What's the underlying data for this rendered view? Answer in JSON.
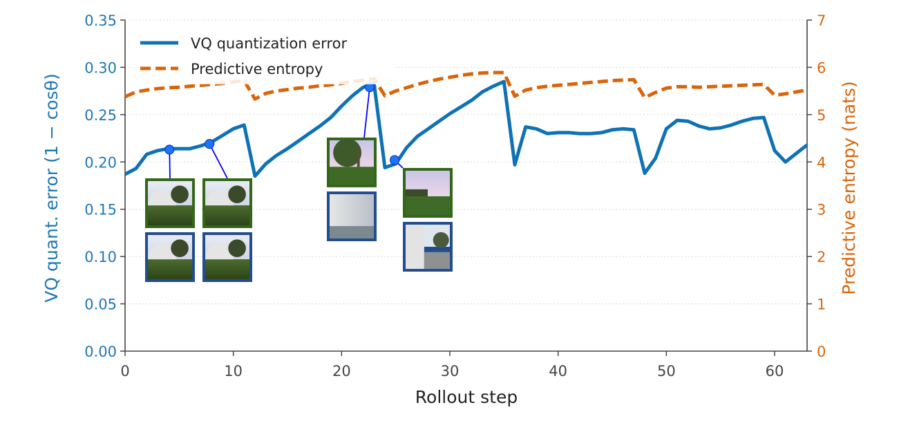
{
  "chart_data": {
    "type": "line",
    "xlabel": "Rollout step",
    "ylabel_left": "VQ quant. error  (1 − cosθ)",
    "ylabel_right": "Predictive entropy (nats)",
    "xlim": [
      0,
      63
    ],
    "ylim_left": [
      0,
      0.35
    ],
    "ylim_right": [
      0,
      7
    ],
    "xticks": [
      0,
      10,
      20,
      30,
      40,
      50,
      60
    ],
    "yticks_left": [
      "0.00",
      "0.05",
      "0.10",
      "0.15",
      "0.20",
      "0.25",
      "0.30",
      "0.35"
    ],
    "yticks_right": [
      "0",
      "1",
      "2",
      "3",
      "4",
      "5",
      "6",
      "7"
    ],
    "grid": "horizontal dotted",
    "legend_position": "top-left",
    "colors": {
      "vq": "#0f72b4",
      "entropy": "#d9650b",
      "axis_left": "#1f77b4",
      "axis_right": "#d9650b",
      "marker": "#1e74ff",
      "connector": "#0000ff",
      "frame_green": "#33661a",
      "frame_blue": "#234d8f"
    },
    "series": [
      {
        "name": "VQ quantization error",
        "axis": "left",
        "style": "solid",
        "x": [
          0,
          1,
          2,
          3,
          4,
          5,
          6,
          7,
          8,
          9,
          10,
          11,
          12,
          13,
          14,
          15,
          16,
          17,
          18,
          19,
          20,
          21,
          22,
          23,
          24,
          25,
          26,
          27,
          28,
          29,
          30,
          31,
          32,
          33,
          34,
          35,
          36,
          37,
          38,
          39,
          40,
          41,
          42,
          43,
          44,
          45,
          46,
          47,
          48,
          49,
          50,
          51,
          52,
          53,
          54,
          55,
          56,
          57,
          58,
          59,
          60,
          61,
          62,
          63
        ],
        "y": [
          0.187,
          0.193,
          0.208,
          0.212,
          0.214,
          0.214,
          0.214,
          0.217,
          0.221,
          0.228,
          0.235,
          0.239,
          0.185,
          0.198,
          0.207,
          0.214,
          0.222,
          0.23,
          0.238,
          0.247,
          0.259,
          0.27,
          0.279,
          0.283,
          0.194,
          0.198,
          0.215,
          0.227,
          0.235,
          0.243,
          0.251,
          0.258,
          0.265,
          0.274,
          0.28,
          0.285,
          0.197,
          0.237,
          0.235,
          0.23,
          0.231,
          0.231,
          0.23,
          0.23,
          0.231,
          0.234,
          0.235,
          0.234,
          0.188,
          0.204,
          0.235,
          0.244,
          0.243,
          0.238,
          0.235,
          0.236,
          0.239,
          0.243,
          0.246,
          0.247,
          0.212,
          0.2,
          0.209,
          0.218
        ]
      },
      {
        "name": "Predictive entropy",
        "axis": "right",
        "style": "dashed",
        "x": [
          0,
          1,
          2,
          3,
          4,
          5,
          6,
          7,
          8,
          9,
          10,
          11,
          12,
          13,
          14,
          15,
          16,
          17,
          18,
          19,
          20,
          21,
          22,
          23,
          24,
          25,
          26,
          27,
          28,
          29,
          30,
          31,
          32,
          33,
          34,
          35,
          36,
          37,
          38,
          39,
          40,
          41,
          42,
          43,
          44,
          45,
          46,
          47,
          48,
          49,
          50,
          51,
          52,
          53,
          54,
          55,
          56,
          57,
          58,
          59,
          60,
          61,
          62,
          63
        ],
        "y": [
          5.38,
          5.48,
          5.52,
          5.55,
          5.57,
          5.58,
          5.6,
          5.62,
          5.64,
          5.66,
          5.69,
          5.72,
          5.33,
          5.45,
          5.5,
          5.53,
          5.56,
          5.58,
          5.61,
          5.63,
          5.66,
          5.7,
          5.73,
          5.76,
          5.4,
          5.5,
          5.57,
          5.64,
          5.7,
          5.75,
          5.79,
          5.83,
          5.86,
          5.88,
          5.89,
          5.89,
          5.39,
          5.52,
          5.57,
          5.6,
          5.62,
          5.64,
          5.66,
          5.68,
          5.7,
          5.72,
          5.73,
          5.74,
          5.36,
          5.47,
          5.56,
          5.59,
          5.59,
          5.58,
          5.59,
          5.6,
          5.61,
          5.62,
          5.63,
          5.64,
          5.41,
          5.44,
          5.48,
          5.52
        ]
      }
    ],
    "annotations": [
      {
        "x": 4.1,
        "y": 0.213,
        "frames": [
          "white dome with tree, green grass",
          "white dome with tree, green grass"
        ]
      },
      {
        "x": 7.8,
        "y": 0.219,
        "frames": [
          "white dome with tree, green grass",
          "white dome with tree, green grass"
        ]
      },
      {
        "x": 22.6,
        "y": 0.279,
        "frames": [
          "large tree, sky and grass",
          "close-up white wall"
        ]
      },
      {
        "x": 24.9,
        "y": 0.202,
        "frames": [
          "sky over grass field",
          "white wall beside path"
        ]
      }
    ]
  }
}
